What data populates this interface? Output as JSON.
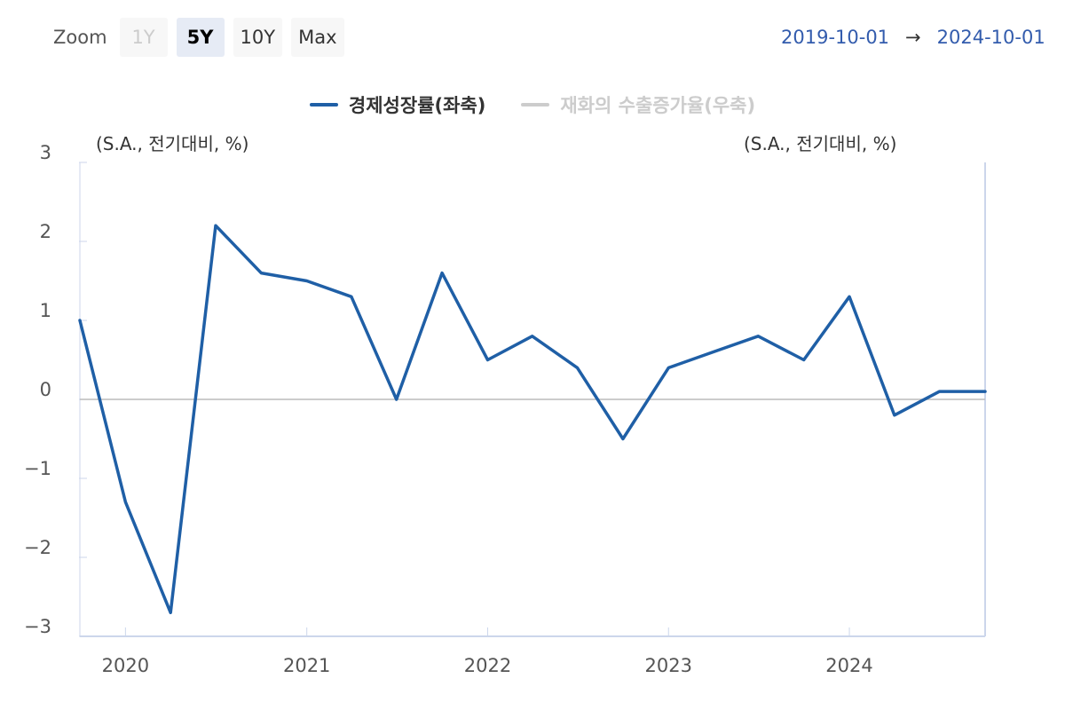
{
  "toolbar": {
    "zoom_label": "Zoom",
    "buttons": [
      {
        "label": "1Y",
        "state": "disabled"
      },
      {
        "label": "5Y",
        "state": "active"
      },
      {
        "label": "10Y",
        "state": "normal"
      },
      {
        "label": "Max",
        "state": "normal"
      }
    ]
  },
  "range": {
    "from": "2019-10-01",
    "arrow": "→",
    "to": "2024-10-01"
  },
  "chart_data": {
    "type": "line",
    "legend_position": "top-center",
    "series": [
      {
        "name": "경제성장률(좌축)",
        "color": "#1f5fa6",
        "visible": true
      },
      {
        "name": "재화의 수출증가율(우축)",
        "color": "#cccccc",
        "visible": false
      }
    ],
    "x": [
      "2019-10-01",
      "2020-01-01",
      "2020-04-01",
      "2020-07-01",
      "2020-10-01",
      "2021-01-01",
      "2021-04-01",
      "2021-07-01",
      "2021-10-01",
      "2022-01-01",
      "2022-04-01",
      "2022-07-01",
      "2022-10-01",
      "2023-01-01",
      "2023-04-01",
      "2023-07-01",
      "2023-10-01",
      "2024-01-01",
      "2024-04-01",
      "2024-07-01",
      "2024-10-01"
    ],
    "values": [
      1.0,
      -1.3,
      -2.7,
      2.2,
      1.6,
      1.5,
      1.3,
      0.0,
      1.6,
      0.5,
      0.8,
      0.4,
      -0.5,
      0.4,
      0.6,
      0.8,
      0.5,
      1.3,
      -0.2,
      0.1,
      0.1
    ],
    "y_left_label": "(S.A., 전기대비, %)",
    "y_right_label": "(S.A., 전기대비, %)",
    "ylim": [
      -3,
      3
    ],
    "y_ticks": [
      {
        "value": 3,
        "label": "3"
      },
      {
        "value": 2,
        "label": "2"
      },
      {
        "value": 1,
        "label": "1"
      },
      {
        "value": 0,
        "label": "0"
      },
      {
        "value": -1,
        "label": "−1"
      },
      {
        "value": -2,
        "label": "−2"
      },
      {
        "value": -3,
        "label": "−3"
      }
    ],
    "x_ticks": [
      {
        "date": "2020-01-01",
        "label": "2020"
      },
      {
        "date": "2021-01-01",
        "label": "2021"
      },
      {
        "date": "2022-01-01",
        "label": "2022"
      },
      {
        "date": "2023-01-01",
        "label": "2023"
      },
      {
        "date": "2024-01-01",
        "label": "2024"
      }
    ],
    "grid": false
  }
}
